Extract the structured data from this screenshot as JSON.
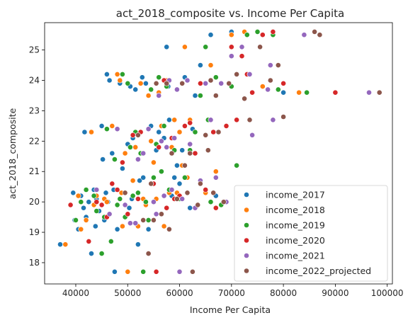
{
  "chart_data": {
    "type": "scatter",
    "title": "act_2018_composite vs. Income Per Capita",
    "xlabel": "Income Per Capita",
    "ylabel": "act_2018_composite",
    "xlim": [
      34000,
      101000
    ],
    "ylim": [
      17.3,
      25.9
    ],
    "xticks": [
      40000,
      50000,
      60000,
      70000,
      80000,
      90000,
      100000
    ],
    "yticks": [
      18,
      19,
      20,
      21,
      22,
      23,
      24,
      25
    ],
    "grid": false,
    "legend_position": "bottom-right",
    "series": [
      {
        "name": "income_2017",
        "color": "#1f77b4",
        "points": [
          [
            37000,
            18.6
          ],
          [
            39500,
            20.3
          ],
          [
            39800,
            19.4
          ],
          [
            40500,
            19.1
          ],
          [
            41000,
            20.2
          ],
          [
            41500,
            19.8
          ],
          [
            41700,
            22.3
          ],
          [
            42000,
            19.5
          ],
          [
            42500,
            20.0
          ],
          [
            43000,
            18.3
          ],
          [
            43500,
            20.4
          ],
          [
            43800,
            19.2
          ],
          [
            44000,
            20.1
          ],
          [
            44500,
            19.7
          ],
          [
            45000,
            22.5
          ],
          [
            45200,
            21.4
          ],
          [
            45500,
            19.4
          ],
          [
            45800,
            20.3
          ],
          [
            46000,
            24.2
          ],
          [
            46200,
            20.0
          ],
          [
            46500,
            24.0
          ],
          [
            47000,
            21.6
          ],
          [
            47300,
            20.4
          ],
          [
            47500,
            17.7
          ],
          [
            48000,
            19.1
          ],
          [
            48500,
            23.9
          ],
          [
            49000,
            21.1
          ],
          [
            49500,
            20.3
          ],
          [
            50000,
            21.9
          ],
          [
            50300,
            19.8
          ],
          [
            50500,
            23.8
          ],
          [
            50800,
            20.1
          ],
          [
            51000,
            22.1
          ],
          [
            51500,
            23.7
          ],
          [
            52000,
            18.6
          ],
          [
            52300,
            20.7
          ],
          [
            52800,
            24.1
          ],
          [
            53000,
            20.8
          ],
          [
            53500,
            23.9
          ],
          [
            54000,
            19.1
          ],
          [
            54500,
            22.5
          ],
          [
            55000,
            20.0
          ],
          [
            55500,
            21.7
          ],
          [
            56000,
            22.3
          ],
          [
            56500,
            19.6
          ],
          [
            57000,
            22.1
          ],
          [
            57500,
            25.1
          ],
          [
            57800,
            23.8
          ],
          [
            58000,
            22.7
          ],
          [
            58500,
            20.2
          ],
          [
            59000,
            20.8
          ],
          [
            59500,
            21.2
          ],
          [
            60000,
            20.6
          ],
          [
            60500,
            21.7
          ],
          [
            61000,
            24.1
          ],
          [
            62000,
            19.8
          ],
          [
            62500,
            22.4
          ],
          [
            63000,
            23.5
          ],
          [
            64000,
            24.5
          ],
          [
            66000,
            25.5
          ],
          [
            67000,
            20.2
          ],
          [
            70000,
            25.6
          ],
          [
            80000,
            23.6
          ]
        ]
      },
      {
        "name": "income_2018",
        "color": "#ff7f0e",
        "points": [
          [
            38000,
            18.6
          ],
          [
            40500,
            20.2
          ],
          [
            41000,
            19.1
          ],
          [
            42000,
            19.4
          ],
          [
            43000,
            22.3
          ],
          [
            43500,
            19.9
          ],
          [
            44000,
            20.2
          ],
          [
            45000,
            18.3
          ],
          [
            45500,
            20.1
          ],
          [
            46000,
            20.0
          ],
          [
            46500,
            19.6
          ],
          [
            47000,
            22.5
          ],
          [
            47500,
            21.4
          ],
          [
            48000,
            24.2
          ],
          [
            48500,
            24.0
          ],
          [
            48800,
            20.3
          ],
          [
            49000,
            19.2
          ],
          [
            49500,
            21.6
          ],
          [
            50000,
            17.7
          ],
          [
            51000,
            20.7
          ],
          [
            51500,
            21.8
          ],
          [
            52000,
            19.2
          ],
          [
            52500,
            23.9
          ],
          [
            53000,
            20.1
          ],
          [
            53500,
            19.9
          ],
          [
            54000,
            23.5
          ],
          [
            54500,
            22.0
          ],
          [
            55000,
            21.3
          ],
          [
            55500,
            20.1
          ],
          [
            56000,
            23.6
          ],
          [
            56500,
            22.5
          ],
          [
            57000,
            19.2
          ],
          [
            57500,
            24.0
          ],
          [
            58000,
            20.3
          ],
          [
            58500,
            21.8
          ],
          [
            59000,
            22.7
          ],
          [
            59500,
            20.3
          ],
          [
            60000,
            22.3
          ],
          [
            60500,
            21.2
          ],
          [
            61000,
            25.1
          ],
          [
            61500,
            20.8
          ],
          [
            62000,
            22.7
          ],
          [
            63000,
            21.6
          ],
          [
            64000,
            23.9
          ],
          [
            65000,
            20.3
          ],
          [
            66000,
            24.5
          ],
          [
            67000,
            21.0
          ],
          [
            68000,
            23.9
          ],
          [
            70000,
            25.5
          ],
          [
            72500,
            25.6
          ],
          [
            76000,
            23.8
          ],
          [
            83000,
            23.6
          ]
        ]
      },
      {
        "name": "income_2019",
        "color": "#2ca02c",
        "points": [
          [
            40000,
            19.4
          ],
          [
            41000,
            20.0
          ],
          [
            42000,
            20.4
          ],
          [
            43500,
            20.2
          ],
          [
            44000,
            19.7
          ],
          [
            45000,
            18.3
          ],
          [
            45500,
            19.5
          ],
          [
            46000,
            22.4
          ],
          [
            46800,
            18.7
          ],
          [
            47500,
            21.4
          ],
          [
            48000,
            19.9
          ],
          [
            48500,
            20.1
          ],
          [
            49000,
            24.2
          ],
          [
            49500,
            19.5
          ],
          [
            50000,
            23.9
          ],
          [
            50500,
            21.8
          ],
          [
            51000,
            20.2
          ],
          [
            51500,
            22.3
          ],
          [
            52000,
            20.3
          ],
          [
            52500,
            21.6
          ],
          [
            53000,
            17.7
          ],
          [
            53500,
            20.0
          ],
          [
            54000,
            19.4
          ],
          [
            54500,
            23.7
          ],
          [
            55000,
            20.8
          ],
          [
            55500,
            21.9
          ],
          [
            56000,
            24.1
          ],
          [
            56500,
            21.0
          ],
          [
            57000,
            22.5
          ],
          [
            57500,
            23.8
          ],
          [
            58000,
            20.4
          ],
          [
            59000,
            21.7
          ],
          [
            60000,
            20.1
          ],
          [
            61000,
            20.8
          ],
          [
            62000,
            21.7
          ],
          [
            63000,
            22.3
          ],
          [
            64000,
            23.5
          ],
          [
            65000,
            25.1
          ],
          [
            65500,
            22.7
          ],
          [
            66000,
            20.0
          ],
          [
            67000,
            24.1
          ],
          [
            68000,
            19.9
          ],
          [
            70000,
            23.8
          ],
          [
            71000,
            21.2
          ],
          [
            73000,
            25.5
          ],
          [
            75000,
            25.6
          ],
          [
            78000,
            25.5
          ],
          [
            79000,
            23.7
          ],
          [
            84500,
            23.6
          ]
        ]
      },
      {
        "name": "income_2020",
        "color": "#d62728",
        "points": [
          [
            39000,
            19.9
          ],
          [
            42500,
            18.7
          ],
          [
            44000,
            20.0
          ],
          [
            45000,
            19.9
          ],
          [
            46000,
            19.5
          ],
          [
            47000,
            20.6
          ],
          [
            48000,
            20.4
          ],
          [
            49000,
            21.3
          ],
          [
            50000,
            19.6
          ],
          [
            51000,
            22.2
          ],
          [
            52000,
            20.1
          ],
          [
            52500,
            22.3
          ],
          [
            53000,
            19.4
          ],
          [
            54000,
            18.3
          ],
          [
            55000,
            20.6
          ],
          [
            55500,
            17.7
          ],
          [
            56000,
            21.8
          ],
          [
            57000,
            24.0
          ],
          [
            57500,
            19.8
          ],
          [
            58500,
            22.1
          ],
          [
            59000,
            20.1
          ],
          [
            60000,
            20.2
          ],
          [
            61000,
            22.5
          ],
          [
            62000,
            22.6
          ],
          [
            63000,
            21.6
          ],
          [
            64000,
            23.9
          ],
          [
            65000,
            20.4
          ],
          [
            66000,
            24.0
          ],
          [
            66500,
            22.3
          ],
          [
            67000,
            19.8
          ],
          [
            68000,
            23.9
          ],
          [
            69000,
            22.5
          ],
          [
            70000,
            25.1
          ],
          [
            71000,
            22.7
          ],
          [
            72000,
            24.8
          ],
          [
            73000,
            24.2
          ],
          [
            74000,
            23.6
          ],
          [
            76000,
            25.5
          ],
          [
            78000,
            25.6
          ],
          [
            80000,
            23.9
          ],
          [
            90000,
            23.6
          ]
        ]
      },
      {
        "name": "income_2021",
        "color": "#9467bd",
        "points": [
          [
            44000,
            20.4
          ],
          [
            46500,
            19.6
          ],
          [
            48000,
            22.4
          ],
          [
            49500,
            19.9
          ],
          [
            50500,
            19.3
          ],
          [
            51500,
            19.3
          ],
          [
            52000,
            21.4
          ],
          [
            53000,
            21.6
          ],
          [
            54000,
            22.4
          ],
          [
            55000,
            20.0
          ],
          [
            55500,
            19.6
          ],
          [
            56000,
            23.5
          ],
          [
            56500,
            22.0
          ],
          [
            57000,
            20.2
          ],
          [
            57500,
            21.8
          ],
          [
            58000,
            24.0
          ],
          [
            58500,
            20.4
          ],
          [
            59000,
            22.1
          ],
          [
            59500,
            23.7
          ],
          [
            60000,
            17.7
          ],
          [
            60500,
            20.1
          ],
          [
            61500,
            24.0
          ],
          [
            62000,
            21.9
          ],
          [
            63000,
            19.8
          ],
          [
            64000,
            20.7
          ],
          [
            65000,
            23.9
          ],
          [
            66000,
            22.7
          ],
          [
            67000,
            20.8
          ],
          [
            68000,
            23.9
          ],
          [
            69000,
            20.0
          ],
          [
            70000,
            24.8
          ],
          [
            72000,
            25.1
          ],
          [
            73500,
            24.2
          ],
          [
            74000,
            22.2
          ],
          [
            77000,
            23.7
          ],
          [
            77500,
            24.5
          ],
          [
            78000,
            22.7
          ],
          [
            84000,
            25.5
          ],
          [
            96500,
            23.6
          ]
        ]
      },
      {
        "name": "income_2022_projected",
        "color": "#8c564b",
        "points": [
          [
            49500,
            20.3
          ],
          [
            52000,
            22.2
          ],
          [
            53000,
            19.4
          ],
          [
            54000,
            18.3
          ],
          [
            54500,
            20.6
          ],
          [
            55000,
            19.4
          ],
          [
            55500,
            23.9
          ],
          [
            56500,
            19.6
          ],
          [
            57500,
            23.9
          ],
          [
            58000,
            19.1
          ],
          [
            58500,
            21.6
          ],
          [
            59500,
            20.1
          ],
          [
            60500,
            23.9
          ],
          [
            61000,
            21.2
          ],
          [
            61500,
            20.3
          ],
          [
            62000,
            21.6
          ],
          [
            62500,
            17.7
          ],
          [
            63500,
            19.9
          ],
          [
            64000,
            20.6
          ],
          [
            65000,
            22.2
          ],
          [
            65500,
            21.7
          ],
          [
            66000,
            24.0
          ],
          [
            66500,
            20.3
          ],
          [
            67000,
            23.5
          ],
          [
            67500,
            22.3
          ],
          [
            68500,
            20.0
          ],
          [
            69500,
            23.9
          ],
          [
            71000,
            24.2
          ],
          [
            72500,
            23.4
          ],
          [
            73500,
            22.7
          ],
          [
            75500,
            25.1
          ],
          [
            77500,
            24.0
          ],
          [
            79000,
            24.5
          ],
          [
            80000,
            22.8
          ],
          [
            86000,
            25.6
          ],
          [
            87000,
            25.5
          ],
          [
            98500,
            23.6
          ]
        ]
      }
    ]
  }
}
